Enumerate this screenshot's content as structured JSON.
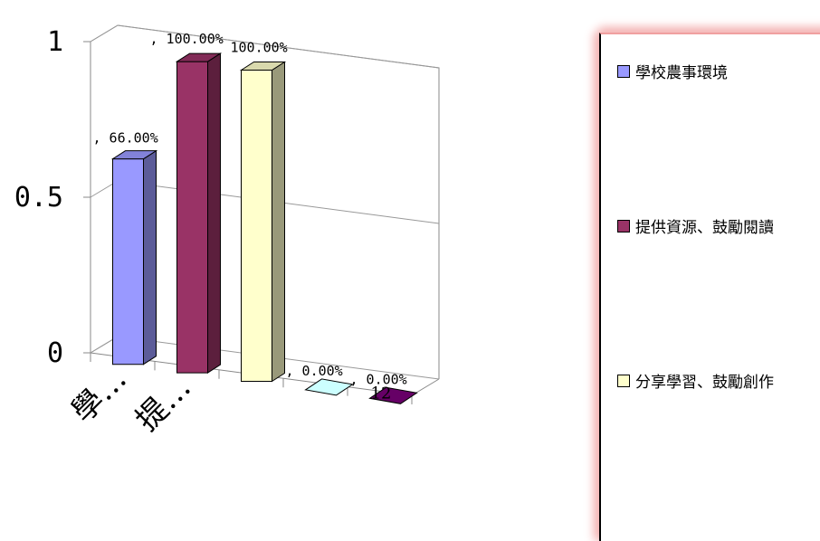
{
  "chart_data": {
    "type": "bar",
    "style": "3d",
    "categories": [
      "學…",
      "提…",
      "",
      "",
      "12"
    ],
    "series": [
      {
        "name": "學校農事環境",
        "value": 0.66,
        "label": ", 66.00%",
        "color": "#9999ff"
      },
      {
        "name": "提供資源、鼓勵閱讀",
        "value": 1.0,
        "label": ", 100.00%",
        "color": "#993366"
      },
      {
        "name": "分享學習、鼓勵創作",
        "value": 1.0,
        "label": "100.00%",
        "color": "#ffffcc"
      },
      {
        "name": "",
        "value": 0.0,
        "label": ", 0.00%",
        "color": "#ccffff"
      },
      {
        "name": "",
        "value": 0.0,
        "label": ", 0.00%",
        "color": "#660066"
      }
    ],
    "yticks": [
      "0",
      "0.5",
      "1"
    ],
    "ylim": [
      0,
      1
    ],
    "grid": true,
    "legend": "right"
  }
}
